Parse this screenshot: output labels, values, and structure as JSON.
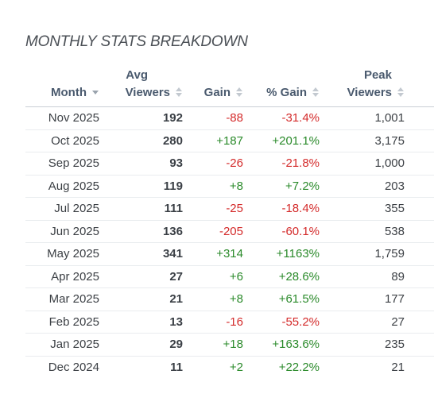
{
  "title": "MONTHLY STATS BREAKDOWN",
  "columns": {
    "month": "Month",
    "avg_line1": "Avg",
    "avg_line2": "Viewers",
    "gain": "Gain",
    "pct_gain": "% Gain",
    "peak_line1": "Peak",
    "peak_line2": "Viewers"
  },
  "rows": [
    {
      "month": "Nov 2025",
      "avg": "192",
      "gain": "-88",
      "pct": "-31.4%",
      "peak": "1,001",
      "gain_sign": "neg"
    },
    {
      "month": "Oct 2025",
      "avg": "280",
      "gain": "+187",
      "pct": "+201.1%",
      "peak": "3,175",
      "gain_sign": "pos"
    },
    {
      "month": "Sep 2025",
      "avg": "93",
      "gain": "-26",
      "pct": "-21.8%",
      "peak": "1,000",
      "gain_sign": "neg"
    },
    {
      "month": "Aug 2025",
      "avg": "119",
      "gain": "+8",
      "pct": "+7.2%",
      "peak": "203",
      "gain_sign": "pos"
    },
    {
      "month": "Jul 2025",
      "avg": "111",
      "gain": "-25",
      "pct": "-18.4%",
      "peak": "355",
      "gain_sign": "neg"
    },
    {
      "month": "Jun 2025",
      "avg": "136",
      "gain": "-205",
      "pct": "-60.1%",
      "peak": "538",
      "gain_sign": "neg"
    },
    {
      "month": "May 2025",
      "avg": "341",
      "gain": "+314",
      "pct": "+1163%",
      "peak": "1,759",
      "gain_sign": "pos"
    },
    {
      "month": "Apr 2025",
      "avg": "27",
      "gain": "+6",
      "pct": "+28.6%",
      "peak": "89",
      "gain_sign": "pos"
    },
    {
      "month": "Mar 2025",
      "avg": "21",
      "gain": "+8",
      "pct": "+61.5%",
      "peak": "177",
      "gain_sign": "pos"
    },
    {
      "month": "Feb 2025",
      "avg": "13",
      "gain": "-16",
      "pct": "-55.2%",
      "peak": "27",
      "gain_sign": "neg"
    },
    {
      "month": "Jan 2025",
      "avg": "29",
      "gain": "+18",
      "pct": "+163.6%",
      "peak": "235",
      "gain_sign": "pos"
    },
    {
      "month": "Dec 2024",
      "avg": "11",
      "gain": "+2",
      "pct": "+22.2%",
      "peak": "21",
      "gain_sign": "pos"
    }
  ],
  "colors": {
    "positive": "#2a8a2a",
    "negative": "#d42b2b",
    "header_text": "#4a5a6e",
    "sort_icon": "#c3c9d0"
  },
  "icons": {
    "month_sort": "caret-down-icon",
    "other_sort": "sort-updown-icon"
  }
}
